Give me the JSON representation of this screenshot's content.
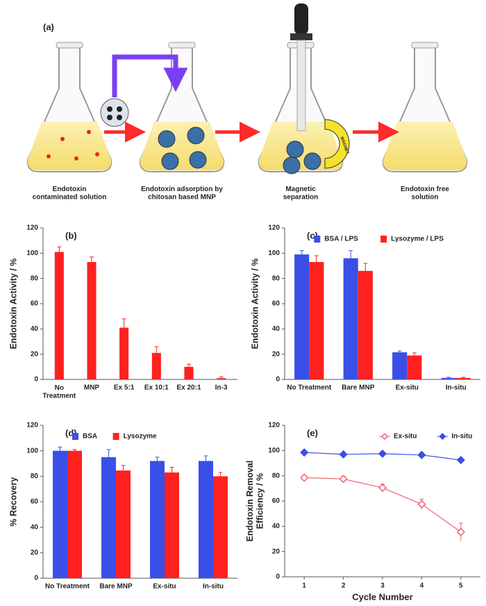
{
  "diagram": {
    "panel_label": "(a)",
    "steps": [
      "Endotoxin\ncontaminated solution",
      "Endotoxin adsorption by\nchitosan based MNP",
      "Magnetic\nseparation",
      "Endotoxin free\nsolution"
    ],
    "magnet": "MAGNET"
  },
  "chart_data": [
    {
      "type": "bar",
      "panel_label": "(b)",
      "ylabel": "Endotoxin Activity / %",
      "categories": [
        "No\nTreatment",
        "MNP",
        "Ex 5:1",
        "Ex 10:1",
        "Ex 20:1",
        "In-3"
      ],
      "values": [
        101,
        93,
        41,
        21,
        10,
        1
      ],
      "errors": [
        4,
        4,
        7,
        5,
        2,
        1
      ],
      "color": "#ff2020",
      "ylim": [
        0,
        120
      ],
      "yticks": [
        0,
        20,
        40,
        60,
        80,
        100,
        120
      ]
    },
    {
      "type": "bar",
      "panel_label": "(c)",
      "ylabel": "Endotoxin Activity / %",
      "legend": "top",
      "categories": [
        "No Treatment",
        "Bare MNP",
        "Ex-situ",
        "In-situ"
      ],
      "series": [
        {
          "name": "BSA / LPS",
          "color": "#3a4fe8",
          "values": [
            99,
            96,
            21.5,
            1.2
          ],
          "errors": [
            3,
            6,
            1,
            0.5
          ]
        },
        {
          "name": "Lysozyme / LPS",
          "color": "#ff2020",
          "values": [
            93,
            86,
            19,
            1.2
          ],
          "errors": [
            5,
            6,
            2,
            0.5
          ]
        }
      ],
      "ylim": [
        0,
        120
      ],
      "yticks": [
        0,
        20,
        40,
        60,
        80,
        100,
        120
      ]
    },
    {
      "type": "bar",
      "panel_label": "(d)",
      "ylabel": "% Recovery",
      "legend": "top",
      "categories": [
        "No Treatment",
        "Bare MNP",
        "Ex-situ",
        "In-situ"
      ],
      "series": [
        {
          "name": "BSA",
          "color": "#3a4fe8",
          "values": [
            100,
            95,
            92,
            92
          ],
          "errors": [
            3,
            6,
            3,
            4
          ]
        },
        {
          "name": "Lysozyme",
          "color": "#ff2020",
          "values": [
            100,
            84.5,
            83,
            80
          ],
          "errors": [
            1,
            4,
            4,
            3
          ]
        }
      ],
      "ylim": [
        0,
        120
      ],
      "yticks": [
        0,
        20,
        40,
        60,
        80,
        100,
        120
      ]
    },
    {
      "type": "line",
      "panel_label": "(e)",
      "ylabel": "Endotoxin Removal\nEfficiency / %",
      "xlabel": "Cycle Number",
      "legend": "top-right",
      "x": [
        1,
        2,
        3,
        4,
        5
      ],
      "series": [
        {
          "name": "Ex-situ",
          "color": "#f06070",
          "hollow": true,
          "values": [
            78.5,
            77.5,
            70.5,
            57.5,
            35.5
          ],
          "errors": [
            2,
            2,
            3,
            4,
            7
          ]
        },
        {
          "name": "In-situ",
          "color": "#3a4fe8",
          "hollow": false,
          "values": [
            98.5,
            97,
            97.5,
            96.5,
            92.5
          ],
          "errors": [
            1,
            1,
            1,
            2,
            1
          ]
        }
      ],
      "xlim": [
        0.5,
        5.5
      ],
      "xticks": [
        1,
        2,
        3,
        4,
        5
      ],
      "ylim": [
        0,
        120
      ],
      "yticks": [
        0,
        20,
        40,
        60,
        80,
        100,
        120
      ]
    }
  ]
}
